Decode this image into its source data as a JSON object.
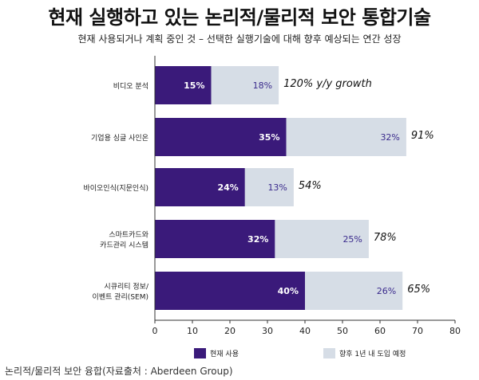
{
  "title": "현재 실행하고 있는 논리적/물리적 보안 통합기술",
  "subtitle": "현재 사용되거나 계획 중인 것 – 선택한 실행기술에 대해 향후 예상되는 연간 성장",
  "source": "논리적/물리적 보안 융합(자료출처 : Aberdeen Group)",
  "colors": {
    "current": "#3a1a7a",
    "planned": "#d6dde6",
    "axis": "#333333"
  },
  "chart_data": {
    "type": "bar",
    "orientation": "horizontal",
    "stacked": true,
    "categories": [
      [
        "비디오 분석"
      ],
      [
        "기업용 싱글 사인온"
      ],
      [
        "바이오인식(지문인식)"
      ],
      [
        "스마트카드와",
        "카드관리 시스템"
      ],
      [
        "시큐리티 정보/",
        "이벤트 관리(SEM)"
      ]
    ],
    "series": [
      {
        "name": "현재 사용",
        "values": [
          15,
          35,
          24,
          32,
          40
        ],
        "labels": [
          "15%",
          "35%",
          "24%",
          "32%",
          "40%"
        ]
      },
      {
        "name": "향후 1년 내 도입 예정",
        "values": [
          18,
          32,
          13,
          25,
          26
        ],
        "labels": [
          "18%",
          "32%",
          "13%",
          "25%",
          "26%"
        ]
      }
    ],
    "growth_labels": [
      "120% y/y growth",
      "91%",
      "54%",
      "78%",
      "65%"
    ],
    "xlim": [
      0,
      80
    ],
    "xticks": [
      "0",
      "10",
      "20",
      "30",
      "40",
      "50",
      "60",
      "70",
      "80"
    ],
    "grid": false,
    "legend_position": "bottom"
  }
}
